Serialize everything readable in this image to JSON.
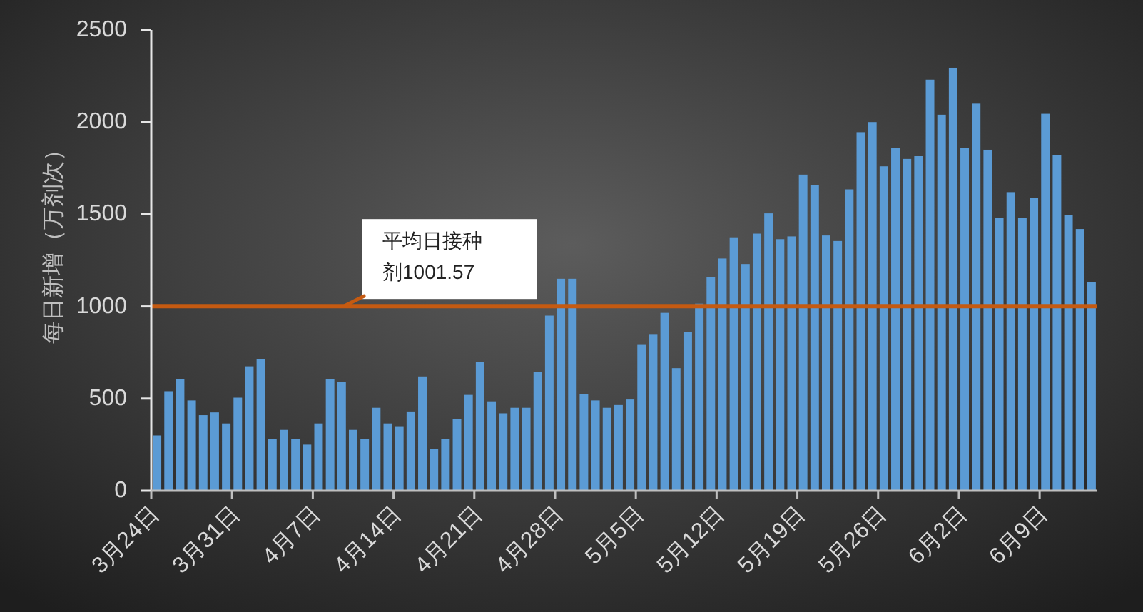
{
  "chart_data": {
    "type": "bar",
    "categories": [
      "3月24日",
      null,
      null,
      null,
      null,
      null,
      null,
      "3月31日",
      null,
      null,
      null,
      null,
      null,
      null,
      "4月7日",
      null,
      null,
      null,
      null,
      null,
      null,
      "4月14日",
      null,
      null,
      null,
      null,
      null,
      null,
      "4月21日",
      null,
      null,
      null,
      null,
      null,
      null,
      "4月28日",
      null,
      null,
      null,
      null,
      null,
      null,
      "5月5日",
      null,
      null,
      null,
      null,
      null,
      null,
      "5月12日",
      null,
      null,
      null,
      null,
      null,
      null,
      "5月19日",
      null,
      null,
      null,
      null,
      null,
      null,
      "5月26日",
      null,
      null,
      null,
      null,
      null,
      null,
      "6月2日",
      null,
      null,
      null,
      null,
      null,
      null,
      "6月9日",
      null,
      null,
      null,
      null
    ],
    "values": [
      300,
      540,
      605,
      490,
      410,
      425,
      365,
      505,
      675,
      715,
      280,
      330,
      280,
      250,
      365,
      605,
      590,
      330,
      280,
      450,
      365,
      350,
      430,
      620,
      225,
      280,
      390,
      520,
      700,
      485,
      420,
      450,
      450,
      645,
      950,
      1150,
      1150,
      525,
      490,
      450,
      465,
      495,
      795,
      850,
      965,
      665,
      860,
      1015,
      1160,
      1260,
      1375,
      1230,
      1395,
      1505,
      1365,
      1380,
      1715,
      1660,
      1385,
      1355,
      1635,
      1945,
      2000,
      1760,
      1860,
      1800,
      1815,
      2230,
      2040,
      2295,
      1860,
      2100,
      1850,
      1480,
      1620,
      1480,
      1590,
      2045,
      1820,
      1495,
      1420,
      1130
    ],
    "color": "#5b9bd5",
    "ylabel": "每日新增（万剂次）",
    "ylim": [
      0,
      2500
    ],
    "yticks": [
      0,
      500,
      1000,
      1500,
      2000,
      2500
    ],
    "ref_lines": [
      {
        "axis": "y",
        "value": 1001.57,
        "label": "平均日接种剂1001.57",
        "color": "#c55a11"
      }
    ]
  }
}
